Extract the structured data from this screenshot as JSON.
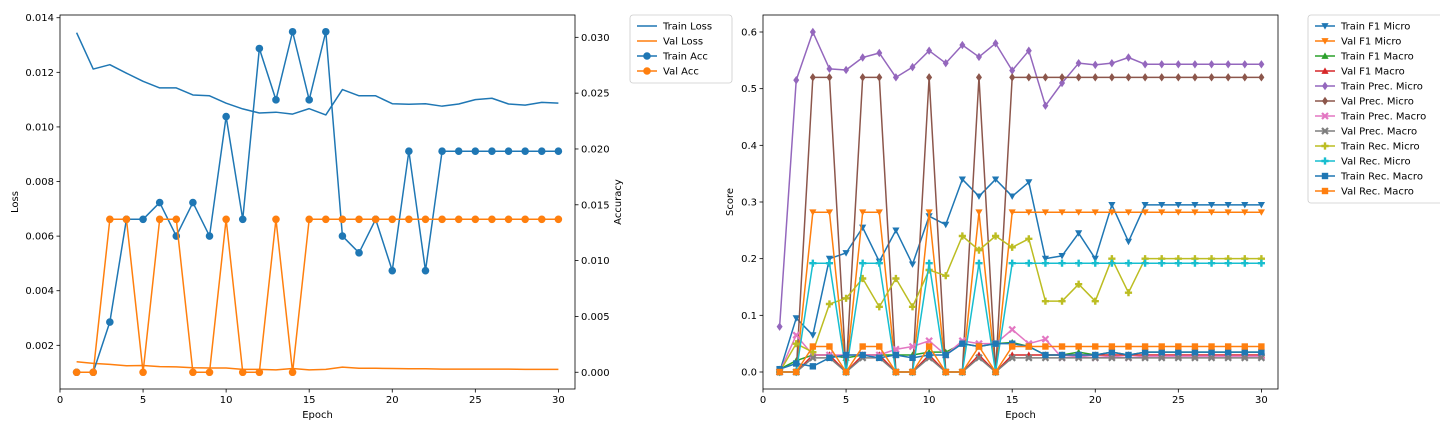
{
  "chart_data": [
    {
      "type": "line",
      "xlabel": "Epoch",
      "ylabel": "Loss",
      "ylabel_right": "Accuracy",
      "x": [
        1,
        2,
        3,
        4,
        5,
        6,
        7,
        8,
        9,
        10,
        11,
        12,
        13,
        14,
        15,
        16,
        17,
        18,
        19,
        20,
        21,
        22,
        23,
        24,
        25,
        26,
        27,
        28,
        29,
        30
      ],
      "xlim": [
        0,
        31
      ],
      "xticks": [
        0,
        5,
        10,
        15,
        20,
        25,
        30
      ],
      "ylim": [
        0.0004,
        0.0141
      ],
      "yticks": [
        0.002,
        0.004,
        0.006,
        0.008,
        0.01,
        0.012,
        0.014
      ],
      "ytick_labels": [
        "0.002",
        "0.004",
        "0.006",
        "0.008",
        "0.010",
        "0.012",
        "0.014"
      ],
      "ylim_right": [
        -0.0015,
        0.032
      ],
      "yticks_right": [
        0.0,
        0.005,
        0.01,
        0.015,
        0.02,
        0.025,
        0.03
      ],
      "ytick_labels_right": [
        "0.000",
        "0.005",
        "0.010",
        "0.015",
        "0.020",
        "0.025",
        "0.030"
      ],
      "legend_position": "outside-top-right",
      "grid": false,
      "series": [
        {
          "name": "Train Loss",
          "axis": "left",
          "color": "#1f77b4",
          "marker": "none",
          "values": [
            0.01345,
            0.01212,
            0.01228,
            0.01197,
            0.01167,
            0.01143,
            0.01143,
            0.01117,
            0.01114,
            0.01087,
            0.01066,
            0.01051,
            0.01054,
            0.01047,
            0.01067,
            0.01044,
            0.01137,
            0.01114,
            0.01114,
            0.01085,
            0.01083,
            0.01085,
            0.01076,
            0.01084,
            0.011,
            0.01105,
            0.01084,
            0.0108,
            0.0109,
            0.01087
          ]
        },
        {
          "name": "Val Loss",
          "axis": "left",
          "color": "#ff7f0e",
          "marker": "none",
          "values": [
            0.0014,
            0.00134,
            0.0013,
            0.00125,
            0.00126,
            0.00122,
            0.00121,
            0.00118,
            0.00117,
            0.00117,
            0.00112,
            0.00112,
            0.0011,
            0.00115,
            0.0011,
            0.00112,
            0.0012,
            0.00116,
            0.00116,
            0.00115,
            0.00114,
            0.00114,
            0.00113,
            0.00113,
            0.00113,
            0.00113,
            0.00113,
            0.00112,
            0.00112,
            0.00112
          ]
        },
        {
          "name": "Train Acc",
          "axis": "right",
          "color": "#1f77b4",
          "marker": "circle",
          "values": [
            0.0,
            0.0,
            0.0045,
            0.0137,
            0.0137,
            0.0152,
            0.0122,
            0.0152,
            0.0122,
            0.0229,
            0.0137,
            0.029,
            0.0244,
            0.0305,
            0.0244,
            0.0305,
            0.0122,
            0.0107,
            0.0137,
            0.0091,
            0.0198,
            0.0091,
            0.0198,
            0.0198,
            0.0198,
            0.0198,
            0.0198,
            0.0198,
            0.0198,
            0.0198
          ]
        },
        {
          "name": "Val Acc",
          "axis": "right",
          "color": "#ff7f0e",
          "marker": "circle",
          "values": [
            0.0,
            0.0,
            0.0137,
            0.0137,
            0.0,
            0.0137,
            0.0137,
            0.0,
            0.0,
            0.0137,
            0.0,
            0.0,
            0.0137,
            0.0,
            0.0137,
            0.0137,
            0.0137,
            0.0137,
            0.0137,
            0.0137,
            0.0137,
            0.0137,
            0.0137,
            0.0137,
            0.0137,
            0.0137,
            0.0137,
            0.0137,
            0.0137,
            0.0137
          ]
        }
      ]
    },
    {
      "type": "line",
      "xlabel": "Epoch",
      "ylabel": "Score",
      "x": [
        1,
        2,
        3,
        4,
        5,
        6,
        7,
        8,
        9,
        10,
        11,
        12,
        13,
        14,
        15,
        16,
        17,
        18,
        19,
        20,
        21,
        22,
        23,
        24,
        25,
        26,
        27,
        28,
        29,
        30
      ],
      "xlim": [
        0,
        31
      ],
      "xticks": [
        0,
        5,
        10,
        15,
        20,
        25,
        30
      ],
      "ylim": [
        -0.03,
        0.63
      ],
      "yticks": [
        0.0,
        0.1,
        0.2,
        0.3,
        0.4,
        0.5,
        0.6
      ],
      "ytick_labels": [
        "0.0",
        "0.1",
        "0.2",
        "0.3",
        "0.4",
        "0.5",
        "0.6"
      ],
      "legend_position": "outside-top-right",
      "grid": false,
      "series": [
        {
          "name": "Train F1 Micro",
          "color": "#1f77b4",
          "marker": "triangle-down",
          "values": [
            0.0,
            0.095,
            0.065,
            0.2,
            0.21,
            0.255,
            0.195,
            0.25,
            0.19,
            0.275,
            0.26,
            0.34,
            0.31,
            0.34,
            0.31,
            0.335,
            0.2,
            0.205,
            0.245,
            0.2,
            0.295,
            0.23,
            0.295,
            0.295,
            0.295,
            0.295,
            0.295,
            0.295,
            0.295,
            0.295
          ]
        },
        {
          "name": "Val F1 Micro",
          "color": "#ff7f0e",
          "marker": "triangle-down",
          "values": [
            0.0,
            0.0,
            0.282,
            0.282,
            0.0,
            0.282,
            0.282,
            0.0,
            0.0,
            0.282,
            0.0,
            0.0,
            0.282,
            0.0,
            0.282,
            0.282,
            0.282,
            0.282,
            0.282,
            0.282,
            0.282,
            0.282,
            0.282,
            0.282,
            0.282,
            0.282,
            0.282,
            0.282,
            0.282,
            0.282
          ]
        },
        {
          "name": "Train F1 Macro",
          "color": "#2ca02c",
          "marker": "triangle-up",
          "values": [
            0.005,
            0.02,
            0.03,
            0.03,
            0.025,
            0.03,
            0.03,
            0.03,
            0.03,
            0.035,
            0.035,
            0.05,
            0.045,
            0.05,
            0.052,
            0.045,
            0.03,
            0.03,
            0.035,
            0.03,
            0.035,
            0.03,
            0.035,
            0.035,
            0.035,
            0.035,
            0.035,
            0.035,
            0.035,
            0.035
          ]
        },
        {
          "name": "Val F1 Macro",
          "color": "#d62728",
          "marker": "triangle-up",
          "values": [
            0.0,
            0.0,
            0.03,
            0.03,
            0.0,
            0.03,
            0.03,
            0.0,
            0.0,
            0.03,
            0.0,
            0.0,
            0.03,
            0.0,
            0.03,
            0.03,
            0.03,
            0.03,
            0.03,
            0.03,
            0.03,
            0.03,
            0.03,
            0.03,
            0.03,
            0.03,
            0.03,
            0.03,
            0.03,
            0.03
          ]
        },
        {
          "name": "Train Prec. Micro",
          "color": "#9467bd",
          "marker": "diamond",
          "values": [
            0.08,
            0.515,
            0.6,
            0.535,
            0.533,
            0.555,
            0.563,
            0.52,
            0.538,
            0.567,
            0.545,
            0.577,
            0.556,
            0.58,
            0.532,
            0.567,
            0.47,
            0.51,
            0.545,
            0.542,
            0.545,
            0.555,
            0.543,
            0.543,
            0.543,
            0.543,
            0.543,
            0.543,
            0.543,
            0.543
          ]
        },
        {
          "name": "Val Prec. Micro",
          "color": "#8c564b",
          "marker": "diamond",
          "values": [
            0.0,
            0.0,
            0.52,
            0.52,
            0.0,
            0.52,
            0.52,
            0.0,
            0.0,
            0.52,
            0.0,
            0.0,
            0.52,
            0.0,
            0.52,
            0.52,
            0.52,
            0.52,
            0.52,
            0.52,
            0.52,
            0.52,
            0.52,
            0.52,
            0.52,
            0.52,
            0.52,
            0.52,
            0.52,
            0.52
          ]
        },
        {
          "name": "Train Prec. Macro",
          "color": "#e377c2",
          "marker": "x",
          "values": [
            0.0,
            0.065,
            0.03,
            0.03,
            0.03,
            0.03,
            0.03,
            0.04,
            0.045,
            0.055,
            0.03,
            0.055,
            0.05,
            0.05,
            0.075,
            0.05,
            0.058,
            0.025,
            0.028,
            0.025,
            0.028,
            0.025,
            0.028,
            0.028,
            0.028,
            0.028,
            0.028,
            0.028,
            0.028,
            0.028
          ]
        },
        {
          "name": "Val Prec. Macro",
          "color": "#7f7f7f",
          "marker": "x",
          "values": [
            0.0,
            0.0,
            0.025,
            0.025,
            0.0,
            0.025,
            0.025,
            0.0,
            0.0,
            0.025,
            0.0,
            0.0,
            0.025,
            0.0,
            0.025,
            0.025,
            0.025,
            0.025,
            0.025,
            0.025,
            0.025,
            0.025,
            0.025,
            0.025,
            0.025,
            0.025,
            0.025,
            0.025,
            0.025,
            0.025
          ]
        },
        {
          "name": "Train Rec. Micro",
          "color": "#bcbd22",
          "marker": "plus",
          "values": [
            0.0,
            0.05,
            0.035,
            0.12,
            0.13,
            0.165,
            0.115,
            0.165,
            0.115,
            0.18,
            0.17,
            0.24,
            0.215,
            0.24,
            0.22,
            0.235,
            0.125,
            0.125,
            0.155,
            0.125,
            0.2,
            0.14,
            0.2,
            0.2,
            0.2,
            0.2,
            0.2,
            0.2,
            0.2,
            0.2
          ]
        },
        {
          "name": "Val Rec. Micro",
          "color": "#17becf",
          "marker": "plus",
          "values": [
            0.0,
            0.0,
            0.192,
            0.192,
            0.0,
            0.192,
            0.192,
            0.0,
            0.0,
            0.192,
            0.0,
            0.0,
            0.192,
            0.0,
            0.192,
            0.192,
            0.192,
            0.192,
            0.192,
            0.192,
            0.192,
            0.192,
            0.192,
            0.192,
            0.192,
            0.192,
            0.192,
            0.192,
            0.192,
            0.192
          ]
        },
        {
          "name": "Train Rec. Macro",
          "color": "#1f77b4",
          "marker": "square",
          "values": [
            0.005,
            0.015,
            0.01,
            0.025,
            0.03,
            0.03,
            0.025,
            0.03,
            0.025,
            0.03,
            0.03,
            0.05,
            0.045,
            0.05,
            0.05,
            0.045,
            0.03,
            0.03,
            0.03,
            0.03,
            0.035,
            0.03,
            0.035,
            0.035,
            0.035,
            0.035,
            0.035,
            0.035,
            0.035,
            0.035
          ]
        },
        {
          "name": "Val Rec. Macro",
          "color": "#ff7f0e",
          "marker": "square",
          "values": [
            0.0,
            0.0,
            0.045,
            0.045,
            0.0,
            0.045,
            0.045,
            0.0,
            0.0,
            0.045,
            0.0,
            0.0,
            0.045,
            0.0,
            0.045,
            0.045,
            0.045,
            0.045,
            0.045,
            0.045,
            0.045,
            0.045,
            0.045,
            0.045,
            0.045,
            0.045,
            0.045,
            0.045,
            0.045,
            0.045
          ]
        }
      ]
    }
  ]
}
